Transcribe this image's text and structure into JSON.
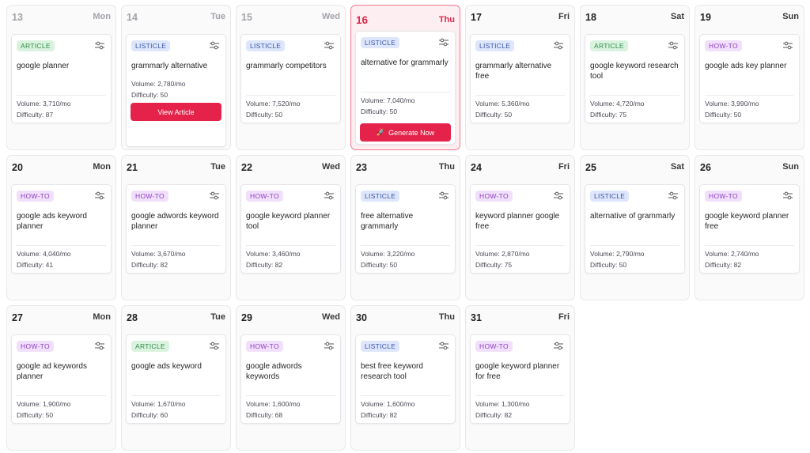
{
  "days": [
    {
      "num": "13",
      "name": "Mon",
      "tag": "ARTICLE",
      "kw": "google planner",
      "vol": "Volume: 3,710/mo",
      "diff": "Difficulty: 87"
    },
    {
      "num": "14",
      "name": "Tue",
      "tag": "LISTICLE",
      "kw": "grammarly alternative",
      "vol": "Volume: 2,780/mo",
      "diff": "Difficulty: 50",
      "button": "View Article"
    },
    {
      "num": "15",
      "name": "Wed",
      "tag": "LISTICLE",
      "kw": "grammarly competitors",
      "vol": "Volume: 7,520/mo",
      "diff": "Difficulty: 50"
    },
    {
      "num": "16",
      "name": "Thu",
      "tag": "LISTICLE",
      "kw": "alternative for grammarly",
      "vol": "Volume: 7,040/mo",
      "diff": "Difficulty: 50",
      "button": "Generate Now"
    },
    {
      "num": "17",
      "name": "Fri",
      "tag": "LISTICLE",
      "kw": "grammarly alternative free",
      "vol": "Volume: 5,360/mo",
      "diff": "Difficulty: 50"
    },
    {
      "num": "18",
      "name": "Sat",
      "tag": "ARTICLE",
      "kw": "google keyword research tool",
      "vol": "Volume: 4,720/mo",
      "diff": "Difficulty: 75"
    },
    {
      "num": "19",
      "name": "Sun",
      "tag": "HOW-TO",
      "kw": "google ads key planner",
      "vol": "Volume: 3,990/mo",
      "diff": "Difficulty: 50"
    },
    {
      "num": "20",
      "name": "Mon",
      "tag": "HOW-TO",
      "kw": "google ads keyword planner",
      "vol": "Volume: 4,040/mo",
      "diff": "Difficulty: 41"
    },
    {
      "num": "21",
      "name": "Tue",
      "tag": "HOW-TO",
      "kw": "google adwords keyword planner",
      "vol": "Volume: 3,670/mo",
      "diff": "Difficulty: 82"
    },
    {
      "num": "22",
      "name": "Wed",
      "tag": "HOW-TO",
      "kw": "google keyword planner tool",
      "vol": "Volume: 3,460/mo",
      "diff": "Difficulty: 82"
    },
    {
      "num": "23",
      "name": "Thu",
      "tag": "LISTICLE",
      "kw": "free alternative grammarly",
      "vol": "Volume: 3,220/mo",
      "diff": "Difficulty: 50"
    },
    {
      "num": "24",
      "name": "Fri",
      "tag": "HOW-TO",
      "kw": "keyword planner google free",
      "vol": "Volume: 2,870/mo",
      "diff": "Difficulty: 75"
    },
    {
      "num": "25",
      "name": "Sat",
      "tag": "LISTICLE",
      "kw": "alternative of grammarly",
      "vol": "Volume: 2,790/mo",
      "diff": "Difficulty: 50"
    },
    {
      "num": "26",
      "name": "Sun",
      "tag": "HOW-TO",
      "kw": "google keyword planner free",
      "vol": "Volume: 2,740/mo",
      "diff": "Difficulty: 82"
    },
    {
      "num": "27",
      "name": "Mon",
      "tag": "HOW-TO",
      "kw": "google ad keywords planner",
      "vol": "Volume: 1,900/mo",
      "diff": "Difficulty: 50"
    },
    {
      "num": "28",
      "name": "Tue",
      "tag": "ARTICLE",
      "kw": "google ads keyword",
      "vol": "Volume: 1,670/mo",
      "diff": "Difficulty: 60"
    },
    {
      "num": "29",
      "name": "Wed",
      "tag": "HOW-TO",
      "kw": "google adwords keywords",
      "vol": "Volume: 1,600/mo",
      "diff": "Difficulty: 68"
    },
    {
      "num": "30",
      "name": "Thu",
      "tag": "LISTICLE",
      "kw": "best free keyword research tool",
      "vol": "Volume: 1,600/mo",
      "diff": "Difficulty: 82"
    },
    {
      "num": "31",
      "name": "Fri",
      "tag": "HOW-TO",
      "kw": "google keyword planner for free",
      "vol": "Volume: 1,300/mo",
      "diff": "Difficulty: 82"
    }
  ],
  "colors": {
    "accent": "#e5234a",
    "today_bg": "#fdeff1",
    "listicle": "#3a54a8",
    "article": "#2f8a49",
    "howto": "#8d3fbf"
  },
  "icons": {
    "settings": "sliders-icon",
    "button": "rocket-icon"
  }
}
